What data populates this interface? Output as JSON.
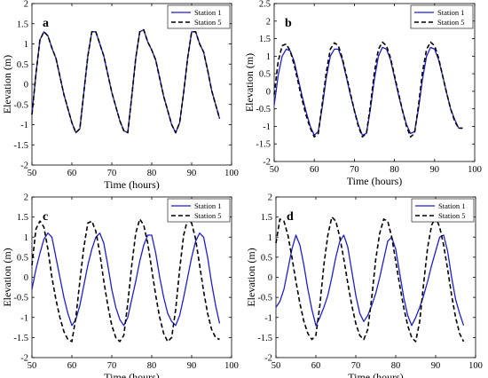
{
  "chart_data": [
    {
      "panel_label": "a",
      "type": "line",
      "xlabel": "Time (hours)",
      "ylabel": "Elevation (m)",
      "xlim": [
        50,
        100
      ],
      "ylim": [
        -2,
        2
      ],
      "xticks": [
        "50",
        "60",
        "70",
        "80",
        "90",
        "100"
      ],
      "yticks": [
        "-2",
        "-1.5",
        "-1",
        "-0.5",
        "0",
        "0.5",
        "1",
        "1.5",
        "2"
      ],
      "grid": false,
      "legend_position": "top-right",
      "series": [
        {
          "name": "Station 1",
          "color": "#1f1fcc",
          "style": "solid",
          "x": [
            50,
            51,
            52,
            53,
            54,
            55,
            56,
            57,
            58,
            59,
            60,
            61,
            62,
            63,
            64,
            65,
            66,
            67,
            68,
            69,
            70,
            71,
            72,
            73,
            74,
            75,
            76,
            77,
            78,
            79,
            80,
            81,
            82,
            83,
            84,
            85,
            86,
            87,
            88,
            89,
            90,
            91,
            92,
            93,
            94,
            95,
            96,
            97
          ],
          "y": [
            -0.75,
            0.25,
            1.1,
            1.3,
            1.2,
            0.9,
            0.65,
            0.2,
            -0.25,
            -0.6,
            -0.95,
            -1.2,
            -1.1,
            -0.2,
            0.7,
            1.3,
            1.3,
            1.0,
            0.7,
            0.25,
            -0.2,
            -0.55,
            -0.9,
            -1.15,
            -1.2,
            -0.3,
            0.65,
            1.3,
            1.35,
            1.05,
            0.85,
            0.6,
            0.15,
            -0.3,
            -0.65,
            -1.0,
            -1.2,
            -0.95,
            -0.2,
            0.65,
            1.3,
            1.3,
            1.0,
            0.8,
            0.35,
            -0.15,
            -0.5,
            -0.85
          ]
        },
        {
          "name": "Station 5",
          "color": "#000000",
          "style": "dashed",
          "x": [
            50,
            51,
            52,
            53,
            54,
            55,
            56,
            57,
            58,
            59,
            60,
            61,
            62,
            63,
            64,
            65,
            66,
            67,
            68,
            69,
            70,
            71,
            72,
            73,
            74,
            75,
            76,
            77,
            78,
            79,
            80,
            81,
            82,
            83,
            84,
            85,
            86,
            87,
            88,
            89,
            90,
            91,
            92,
            93,
            94,
            95,
            96,
            97
          ],
          "y": [
            -0.75,
            0.25,
            1.1,
            1.3,
            1.2,
            0.9,
            0.65,
            0.2,
            -0.25,
            -0.6,
            -0.95,
            -1.2,
            -1.1,
            -0.2,
            0.7,
            1.3,
            1.3,
            1.0,
            0.7,
            0.25,
            -0.2,
            -0.55,
            -0.9,
            -1.15,
            -1.2,
            -0.3,
            0.65,
            1.3,
            1.35,
            1.05,
            0.85,
            0.6,
            0.15,
            -0.3,
            -0.65,
            -1.0,
            -1.2,
            -0.95,
            -0.2,
            0.65,
            1.3,
            1.3,
            1.0,
            0.8,
            0.35,
            -0.15,
            -0.5,
            -0.85
          ]
        }
      ]
    },
    {
      "panel_label": "b",
      "type": "line",
      "xlabel": "Time (hours)",
      "ylabel": "Elevation (m)",
      "xlim": [
        50,
        100
      ],
      "ylim": [
        -2,
        2.5
      ],
      "xticks": [
        "50",
        "60",
        "70",
        "80",
        "90",
        "100"
      ],
      "yticks": [
        "-2",
        "-1.5",
        "-1",
        "-0.5",
        "0",
        "0.5",
        "1",
        "1.5",
        "2",
        "2.5"
      ],
      "grid": false,
      "legend_position": "top-right",
      "series": [
        {
          "name": "Station 1",
          "color": "#1f1fcc",
          "style": "solid",
          "x": [
            50,
            51,
            52,
            53,
            54,
            55,
            56,
            57,
            58,
            59,
            60,
            61,
            62,
            63,
            64,
            65,
            66,
            67,
            68,
            69,
            70,
            71,
            72,
            73,
            74,
            75,
            76,
            77,
            78,
            79,
            80,
            81,
            82,
            83,
            84,
            85,
            86,
            87,
            88,
            89,
            90,
            91,
            92,
            93,
            94,
            95,
            96,
            97
          ],
          "y": [
            -0.4,
            0.45,
            1.0,
            1.2,
            1.15,
            0.85,
            0.35,
            -0.15,
            -0.6,
            -1.0,
            -1.25,
            -1.15,
            -0.45,
            0.4,
            1.0,
            1.2,
            1.2,
            0.9,
            0.4,
            -0.1,
            -0.55,
            -0.95,
            -1.25,
            -1.2,
            -0.5,
            0.35,
            1.0,
            1.25,
            1.2,
            0.9,
            0.4,
            -0.1,
            -0.55,
            -0.95,
            -1.2,
            -1.15,
            -0.5,
            0.35,
            1.0,
            1.25,
            1.2,
            0.9,
            0.45,
            -0.05,
            -0.5,
            -0.8,
            -1.05,
            -1.05
          ]
        },
        {
          "name": "Station 5",
          "color": "#000000",
          "style": "dashed",
          "x": [
            50,
            51,
            52,
            53,
            54,
            55,
            56,
            57,
            58,
            59,
            60,
            61,
            62,
            63,
            64,
            65,
            66,
            67,
            68,
            69,
            70,
            71,
            72,
            73,
            74,
            75,
            76,
            77,
            78,
            79,
            80,
            81,
            82,
            83,
            84,
            85,
            86,
            87,
            88,
            89,
            90,
            91,
            92,
            93,
            94,
            95,
            96,
            97
          ],
          "y": [
            -0.1,
            0.85,
            1.3,
            1.35,
            1.15,
            0.75,
            0.25,
            -0.25,
            -0.7,
            -1.05,
            -1.3,
            -1.2,
            -0.35,
            0.55,
            1.2,
            1.38,
            1.3,
            0.95,
            0.45,
            -0.05,
            -0.55,
            -1.0,
            -1.3,
            -1.2,
            -0.4,
            0.55,
            1.2,
            1.4,
            1.3,
            0.95,
            0.45,
            -0.05,
            -0.55,
            -1.0,
            -1.3,
            -1.2,
            -0.4,
            0.55,
            1.2,
            1.4,
            1.3,
            0.95,
            0.45,
            -0.05,
            -0.5,
            -0.85,
            -1.05,
            -1.05
          ]
        }
      ]
    },
    {
      "panel_label": "c",
      "type": "line",
      "xlabel": "Time (hours)",
      "ylabel": "Elevation (m)",
      "xlim": [
        50,
        100
      ],
      "ylim": [
        -2,
        2
      ],
      "xticks": [
        "50",
        "60",
        "70",
        "80",
        "90",
        "100"
      ],
      "yticks": [
        "-2",
        "-1.5",
        "-1",
        "-0.5",
        "0",
        "0.5",
        "1",
        "1.5",
        "2"
      ],
      "grid": false,
      "legend_position": "top-right",
      "series": [
        {
          "name": "Station 1",
          "color": "#1f1fcc",
          "style": "solid",
          "x": [
            50,
            51,
            52,
            53,
            54,
            55,
            56,
            57,
            58,
            59,
            60,
            61,
            62,
            63,
            64,
            65,
            66,
            67,
            68,
            69,
            70,
            71,
            72,
            73,
            74,
            75,
            76,
            77,
            78,
            79,
            80,
            81,
            82,
            83,
            84,
            85,
            86,
            87,
            88,
            89,
            90,
            91,
            92,
            93,
            94,
            95,
            96,
            97
          ],
          "y": [
            -0.3,
            0.2,
            0.6,
            0.95,
            1.1,
            1.0,
            0.5,
            0.0,
            -0.5,
            -0.9,
            -1.2,
            -1.05,
            -0.7,
            -0.2,
            0.3,
            0.7,
            1.0,
            1.1,
            0.85,
            0.3,
            -0.3,
            -0.75,
            -1.05,
            -1.2,
            -1.0,
            -0.55,
            -0.1,
            0.4,
            0.8,
            1.05,
            1.05,
            0.6,
            0.0,
            -0.5,
            -0.9,
            -1.1,
            -1.2,
            -0.95,
            -0.5,
            0.0,
            0.5,
            0.9,
            1.1,
            1.0,
            0.5,
            -0.15,
            -0.7,
            -1.15
          ]
        },
        {
          "name": "Station 5",
          "color": "#000000",
          "style": "dashed",
          "x": [
            50,
            51,
            52,
            53,
            54,
            55,
            56,
            57,
            58,
            59,
            60,
            61,
            62,
            63,
            64,
            65,
            66,
            67,
            68,
            69,
            70,
            71,
            72,
            73,
            74,
            75,
            76,
            77,
            78,
            79,
            80,
            81,
            82,
            83,
            84,
            85,
            86,
            87,
            88,
            89,
            90,
            91,
            92,
            93,
            94,
            95,
            96,
            97
          ],
          "y": [
            0.3,
            1.2,
            1.4,
            1.25,
            0.7,
            0.0,
            -0.55,
            -1.0,
            -1.35,
            -1.55,
            -1.6,
            -1.0,
            -0.1,
            0.75,
            1.35,
            1.4,
            1.15,
            0.6,
            -0.1,
            -0.7,
            -1.2,
            -1.5,
            -1.6,
            -1.45,
            -0.65,
            0.3,
            1.1,
            1.45,
            1.3,
            0.85,
            0.2,
            -0.45,
            -1.0,
            -1.4,
            -1.6,
            -1.5,
            -0.8,
            0.2,
            1.05,
            1.45,
            1.35,
            0.95,
            0.3,
            -0.35,
            -0.9,
            -1.3,
            -1.5,
            -1.55
          ]
        }
      ]
    },
    {
      "panel_label": "d",
      "type": "line",
      "xlabel": "Time (hours)",
      "ylabel": "Elevation (m)",
      "xlim": [
        50,
        100
      ],
      "ylim": [
        -2,
        2
      ],
      "xticks": [
        "50",
        "60",
        "70",
        "80",
        "90",
        "100"
      ],
      "yticks": [
        "-2",
        "-1.5",
        "-1",
        "-0.5",
        "0",
        "0.5",
        "1",
        "1.5",
        "2"
      ],
      "grid": false,
      "legend_position": "top-right",
      "series": [
        {
          "name": "Station 1",
          "color": "#1f1fcc",
          "style": "solid",
          "x": [
            50,
            51,
            52,
            53,
            54,
            55,
            56,
            57,
            58,
            59,
            60,
            61,
            62,
            63,
            64,
            65,
            66,
            67,
            68,
            69,
            70,
            71,
            72,
            73,
            74,
            75,
            76,
            77,
            78,
            79,
            80,
            81,
            82,
            83,
            84,
            85,
            86,
            87,
            88,
            89,
            90,
            91,
            92,
            93,
            94,
            95,
            96,
            97
          ],
          "y": [
            -0.75,
            -0.6,
            -0.3,
            0.2,
            0.7,
            1.05,
            0.8,
            0.3,
            -0.3,
            -0.8,
            -1.2,
            -1.0,
            -0.75,
            -0.45,
            0.0,
            0.5,
            0.9,
            1.05,
            0.75,
            0.15,
            -0.45,
            -0.9,
            -1.1,
            -0.95,
            -0.7,
            -0.4,
            0.0,
            0.45,
            0.9,
            1.0,
            0.7,
            0.1,
            -0.5,
            -0.95,
            -1.2,
            -1.0,
            -0.75,
            -0.45,
            -0.1,
            0.3,
            0.65,
            1.0,
            1.05,
            0.65,
            0.0,
            -0.55,
            -0.9,
            -1.2
          ]
        },
        {
          "name": "Station 5",
          "color": "#000000",
          "style": "dashed",
          "x": [
            50,
            51,
            52,
            53,
            54,
            55,
            56,
            57,
            58,
            59,
            60,
            61,
            62,
            63,
            64,
            65,
            66,
            67,
            68,
            69,
            70,
            71,
            72,
            73,
            74,
            75,
            76,
            77,
            78,
            79,
            80,
            81,
            82,
            83,
            84,
            85,
            86,
            87,
            88,
            89,
            90,
            91,
            92,
            93,
            94,
            95,
            96,
            97
          ],
          "y": [
            0.85,
            1.45,
            1.4,
            1.05,
            0.5,
            -0.1,
            -0.65,
            -1.1,
            -1.4,
            -1.55,
            -1.45,
            -0.7,
            0.3,
            1.05,
            1.5,
            1.4,
            1.0,
            0.45,
            -0.15,
            -0.7,
            -1.15,
            -1.45,
            -1.55,
            -1.3,
            -0.5,
            0.45,
            1.1,
            1.45,
            1.4,
            1.0,
            0.4,
            -0.2,
            -0.75,
            -1.2,
            -1.5,
            -1.6,
            -1.1,
            -0.15,
            0.75,
            1.3,
            1.5,
            1.25,
            0.8,
            0.2,
            -0.45,
            -1.0,
            -1.4,
            -1.6
          ]
        }
      ]
    }
  ]
}
